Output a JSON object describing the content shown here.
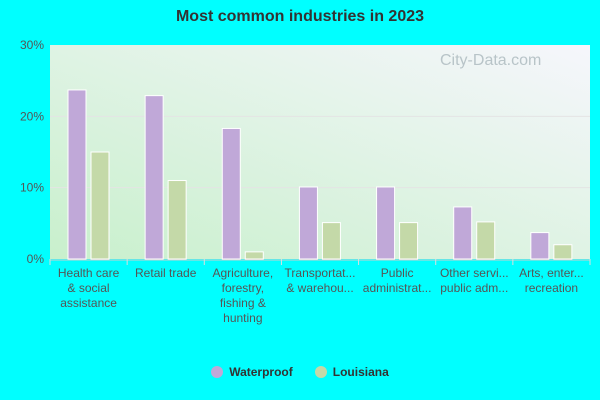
{
  "chart_data": {
    "type": "bar",
    "title": "Most common industries in 2023",
    "categories": [
      [
        "Health care",
        "& social",
        "assistance"
      ],
      [
        "Retail trade"
      ],
      [
        "Agriculture,",
        "forestry,",
        "fishing &",
        "hunting"
      ],
      [
        "Transportat...",
        "& warehou..."
      ],
      [
        "Public",
        "administrat..."
      ],
      [
        "Other servi...",
        "public adm..."
      ],
      [
        "Arts, enter...",
        "recreation"
      ]
    ],
    "series": [
      {
        "name": "Waterproof",
        "color": "#c0a8d8",
        "values": [
          23.7,
          22.9,
          18.3,
          10.1,
          10.1,
          7.3,
          3.7
        ]
      },
      {
        "name": "Louisiana",
        "color": "#c4d9a8",
        "values": [
          15.0,
          11.0,
          1.0,
          5.1,
          5.1,
          5.2,
          2.0
        ]
      }
    ],
    "ylim": [
      0,
      30
    ],
    "yticks": [
      "0%",
      "10%",
      "20%",
      "30%"
    ],
    "grid": true,
    "legend": "bottom"
  },
  "watermark": "City-Data.com"
}
